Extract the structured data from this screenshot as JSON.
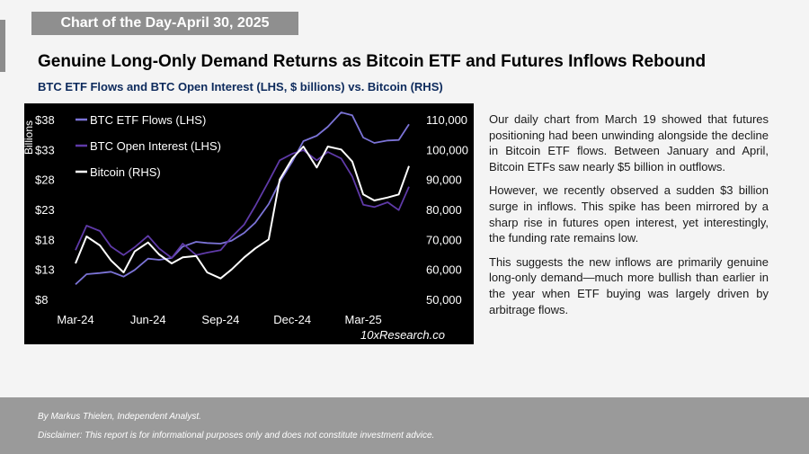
{
  "banner": "Chart of the Day-April 30, 2025",
  "headline": "Genuine Long-Only Demand Returns as Bitcoin ETF and Futures Inflows Rebound",
  "subtitle": "BTC ETF Flows and BTC Open Interest (LHS, $ billions) vs. Bitcoin (RHS)",
  "commentary": [
    "Our daily chart from March 19 showed that futures positioning had been unwinding alongside the decline in Bitcoin ETF flows. Between January and April, Bitcoin ETFs saw nearly $5 billion in outflows.",
    "However, we recently observed a sudden $3 billion surge in inflows. This spike has been mirrored by a sharp rise in futures open interest, yet interestingly, the funding rate remains low.",
    "This suggests the new inflows are primarily genuine long-only demand—much more bullish than earlier in the year when ETF buying was largely driven by arbitrage flows."
  ],
  "footer": {
    "author": "By Markus Thielen, Independent Analyst.",
    "disclaimer": "Disclaimer: This report is for informational purposes only and does not constitute investment advice."
  },
  "chart_data": {
    "type": "line",
    "background": "#000000",
    "ylabel_left": "Billions",
    "yticks_left": [
      "$38",
      "$33",
      "$28",
      "$23",
      "$18",
      "$13",
      "$8"
    ],
    "ylim_left": [
      8,
      38
    ],
    "yticks_right": [
      "110,000",
      "100,000",
      "90,000",
      "80,000",
      "70,000",
      "60,000",
      "50,000"
    ],
    "ylim_right": [
      50000,
      110000
    ],
    "xticks": [
      "Mar-24",
      "Jun-24",
      "Sep-24",
      "Dec-24",
      "Mar-25"
    ],
    "x": [
      "2024-03-01",
      "2024-03-15",
      "2024-04-01",
      "2024-04-15",
      "2024-05-01",
      "2024-05-15",
      "2024-06-01",
      "2024-06-15",
      "2024-07-01",
      "2024-07-15",
      "2024-08-01",
      "2024-08-15",
      "2024-09-01",
      "2024-09-15",
      "2024-10-01",
      "2024-10-15",
      "2024-11-01",
      "2024-11-15",
      "2024-12-01",
      "2024-12-15",
      "2025-01-01",
      "2025-01-15",
      "2025-02-01",
      "2025-02-15",
      "2025-03-01",
      "2025-03-15",
      "2025-04-01",
      "2025-04-15",
      "2025-04-28"
    ],
    "legend_position": "top-left",
    "watermark": "10xResearch.co",
    "series": [
      {
        "name": "BTC ETF Flows (LHS)",
        "axis": "left",
        "color": "#7b73d6",
        "values": [
          10.5,
          12.2,
          12.4,
          12.6,
          11.8,
          12.9,
          14.8,
          14.6,
          14.9,
          16.8,
          17.6,
          17.4,
          17.3,
          17.8,
          19.1,
          20.8,
          23.9,
          27.6,
          31.0,
          34.4,
          35.3,
          36.8,
          39.2,
          38.7,
          35.0,
          34.1,
          34.5,
          34.6,
          37.2
        ]
      },
      {
        "name": "BTC Open Interest (LHS)",
        "axis": "left",
        "color": "#5f3aa8",
        "values": [
          16.2,
          20.3,
          19.4,
          16.8,
          15.4,
          16.7,
          18.6,
          16.5,
          14.9,
          17.3,
          15.4,
          15.8,
          16.2,
          18.4,
          20.5,
          23.6,
          27.7,
          31.2,
          32.3,
          32.9,
          31.2,
          32.6,
          31.5,
          28.5,
          23.8,
          23.4,
          24.2,
          22.9,
          26.8
        ]
      },
      {
        "name": "Bitcoin (RHS)",
        "axis": "right",
        "color": "#ffffff",
        "values": [
          62000,
          71000,
          68000,
          63000,
          59000,
          66000,
          69000,
          65000,
          62000,
          64000,
          64500,
          59000,
          57000,
          60000,
          64000,
          67000,
          70000,
          90000,
          97000,
          101000,
          94000,
          101000,
          100000,
          96000,
          85000,
          83000,
          84000,
          85000,
          94500
        ]
      }
    ]
  }
}
